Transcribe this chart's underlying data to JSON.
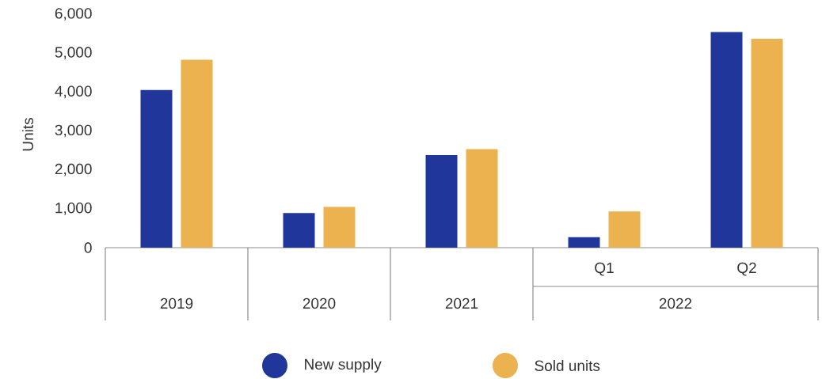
{
  "chart_data": {
    "type": "bar",
    "ylabel": "Units",
    "categories": [
      "2019",
      "2020",
      "2021",
      "Q1",
      "Q2"
    ],
    "series": [
      {
        "name": "New supply",
        "color": "#20369a",
        "values": [
          4050,
          890,
          2380,
          270,
          5540
        ]
      },
      {
        "name": "Sold units",
        "color": "#ecb24f",
        "values": [
          4830,
          1050,
          2530,
          930,
          5370
        ]
      }
    ],
    "ylim": [
      0,
      6000
    ],
    "yticks": [
      {
        "value": 0,
        "label": "0"
      },
      {
        "value": 1000,
        "label": "1,000"
      },
      {
        "value": 2000,
        "label": "2,000"
      },
      {
        "value": 3000,
        "label": "3,000"
      },
      {
        "value": 4000,
        "label": "4,000"
      },
      {
        "value": 5000,
        "label": "5,000"
      },
      {
        "value": 6000,
        "label": "6,000"
      }
    ],
    "annotations": [
      "2022"
    ],
    "grid": false,
    "legend": "bottom"
  }
}
